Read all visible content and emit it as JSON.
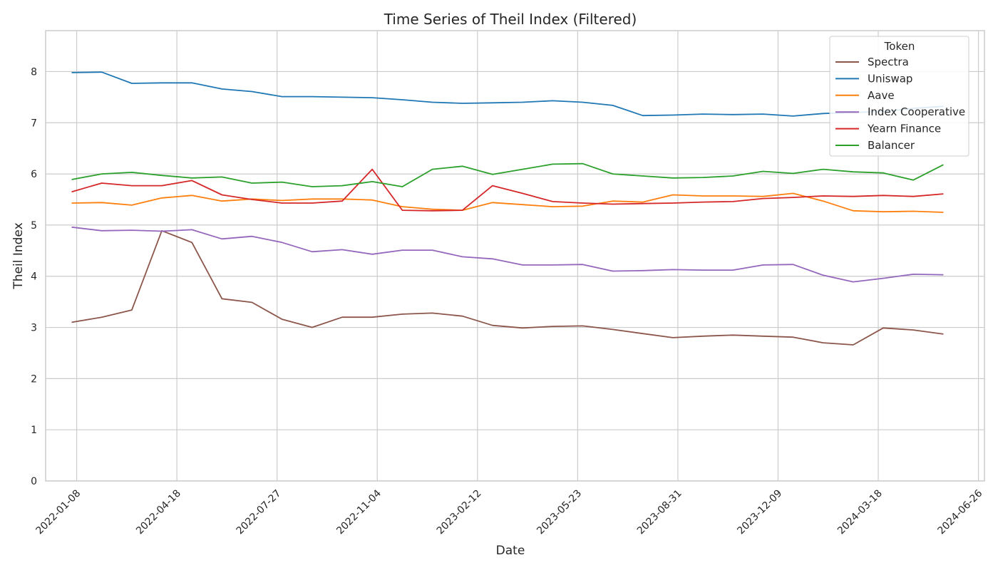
{
  "chart_data": {
    "type": "line",
    "title": "Time Series of Theil Index (Filtered)",
    "xlabel": "Date",
    "ylabel": "Theil Index",
    "ylim": [
      0,
      8.8
    ],
    "y_ticks": [
      0,
      1,
      2,
      3,
      4,
      5,
      6,
      7,
      8
    ],
    "xlim": [
      "2021-12-08",
      "2024-07-02"
    ],
    "x_ticks": [
      "2022-01-08",
      "2022-04-18",
      "2022-07-27",
      "2022-11-04",
      "2023-02-12",
      "2023-05-23",
      "2023-08-31",
      "2023-12-09",
      "2024-03-18",
      "2024-06-26"
    ],
    "grid": true,
    "legend": {
      "title": "Token",
      "placement": "top-right"
    },
    "x": [
      "2022-01-03",
      "2022-02-02",
      "2022-03-04",
      "2022-04-03",
      "2022-05-03",
      "2022-06-02",
      "2022-07-02",
      "2022-08-01",
      "2022-08-31",
      "2022-09-30",
      "2022-10-30",
      "2022-11-29",
      "2022-12-29",
      "2023-01-28",
      "2023-02-27",
      "2023-03-29",
      "2023-04-28",
      "2023-05-28",
      "2023-06-27",
      "2023-07-27",
      "2023-08-26",
      "2023-09-25",
      "2023-10-25",
      "2023-11-24",
      "2023-12-24",
      "2024-01-23",
      "2024-02-22",
      "2024-03-23",
      "2024-04-22",
      "2024-05-22"
    ],
    "series": [
      {
        "name": "Spectra",
        "color": "#8c564b",
        "values": [
          3.1,
          3.2,
          3.34,
          4.89,
          4.66,
          3.56,
          3.49,
          3.16,
          3.0,
          3.2,
          3.2,
          3.26,
          3.28,
          3.22,
          3.04,
          2.99,
          3.02,
          3.03,
          2.96,
          2.88,
          2.8,
          2.83,
          2.85,
          2.83,
          2.81,
          2.7,
          2.66,
          2.99,
          2.95,
          2.87
        ]
      },
      {
        "name": "Uniswap",
        "color": "#1f77b4",
        "values": [
          7.98,
          7.99,
          7.77,
          7.78,
          7.78,
          7.66,
          7.61,
          7.51,
          7.51,
          7.5,
          7.49,
          7.45,
          7.4,
          7.38,
          7.39,
          7.4,
          7.43,
          7.4,
          7.34,
          7.14,
          7.15,
          7.17,
          7.16,
          7.17,
          7.13,
          7.18,
          7.2,
          7.22,
          7.28,
          7.32
        ]
      },
      {
        "name": "Aave",
        "color": "#ff7f0e",
        "values": [
          5.43,
          5.44,
          5.39,
          5.53,
          5.58,
          5.47,
          5.51,
          5.48,
          5.51,
          5.51,
          5.49,
          5.36,
          5.31,
          5.29,
          5.44,
          5.4,
          5.36,
          5.37,
          5.47,
          5.45,
          5.59,
          5.57,
          5.57,
          5.56,
          5.62,
          5.47,
          5.28,
          5.26,
          5.27,
          5.25
        ]
      },
      {
        "name": "Index Cooperative",
        "color": "#9467bd",
        "values": [
          4.96,
          4.89,
          4.9,
          4.88,
          4.91,
          4.73,
          4.78,
          4.66,
          4.48,
          4.52,
          4.43,
          4.51,
          4.51,
          4.38,
          4.34,
          4.22,
          4.22,
          4.23,
          4.1,
          4.11,
          4.13,
          4.12,
          4.12,
          4.22,
          4.23,
          4.02,
          3.89,
          3.96,
          4.04,
          4.03
        ]
      },
      {
        "name": "Yearn Finance",
        "color": "#d62728",
        "values": [
          5.65,
          5.82,
          5.77,
          5.77,
          5.87,
          5.59,
          5.5,
          5.43,
          5.43,
          5.47,
          6.09,
          5.29,
          5.28,
          5.29,
          5.77,
          5.62,
          5.46,
          5.43,
          5.41,
          5.42,
          5.43,
          5.45,
          5.46,
          5.52,
          5.54,
          5.57,
          5.56,
          5.58,
          5.56,
          5.61
        ]
      },
      {
        "name": "Balancer",
        "color": "#2ca02c",
        "values": [
          5.89,
          6.0,
          6.03,
          5.97,
          5.92,
          5.94,
          5.82,
          5.84,
          5.75,
          5.77,
          5.85,
          5.75,
          6.09,
          6.15,
          5.99,
          6.09,
          6.19,
          6.2,
          6.0,
          5.96,
          5.92,
          5.93,
          5.96,
          6.05,
          6.01,
          6.09,
          6.04,
          6.02,
          5.88,
          6.18
        ]
      }
    ]
  }
}
